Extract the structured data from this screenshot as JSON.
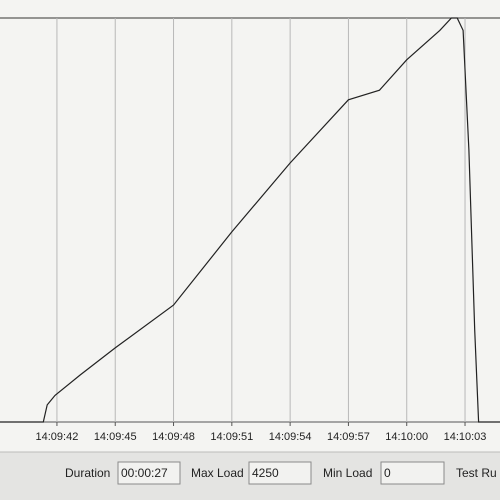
{
  "chart_data": {
    "type": "line",
    "x": [
      "14:09:39.0",
      "14:09:41.3",
      "14:09:41.5",
      "14:09:41.9",
      "14:09:43.2",
      "14:09:45.0",
      "14:09:48.0",
      "14:09:51.0",
      "14:09:54.0",
      "14:09:57.0",
      "14:09:58.6",
      "14:10:00.0",
      "14:10:01.7",
      "14:10:02.3",
      "14:10:02.6",
      "14:10:02.9",
      "14:10:03.2",
      "14:10:03.5",
      "14:10:03.7",
      "14:10:04.8"
    ],
    "series": [
      {
        "color": "#222222",
        "values": [
          0,
          0,
          180,
          280,
          495,
          780,
          1230,
          2000,
          2725,
          3390,
          3490,
          3810,
          4120,
          4250,
          4250,
          4120,
          2860,
          970,
          0,
          0
        ]
      }
    ],
    "xlim": [
      "14:09:39.07",
      "14:10:04.8"
    ],
    "xticks": [
      "14:09:42",
      "14:09:45",
      "14:09:48",
      "14:09:51",
      "14:09:54",
      "14:09:57",
      "14:10:00",
      "14:10:03"
    ],
    "ylim": [
      0,
      4250
    ],
    "grid": true
  },
  "fields": [
    {
      "label": "Duration",
      "value": "00:00:27"
    },
    {
      "label": "Max Load",
      "value": "4250"
    },
    {
      "label": "Min Load",
      "value": "0"
    },
    {
      "label": "Test Ru"
    }
  ]
}
